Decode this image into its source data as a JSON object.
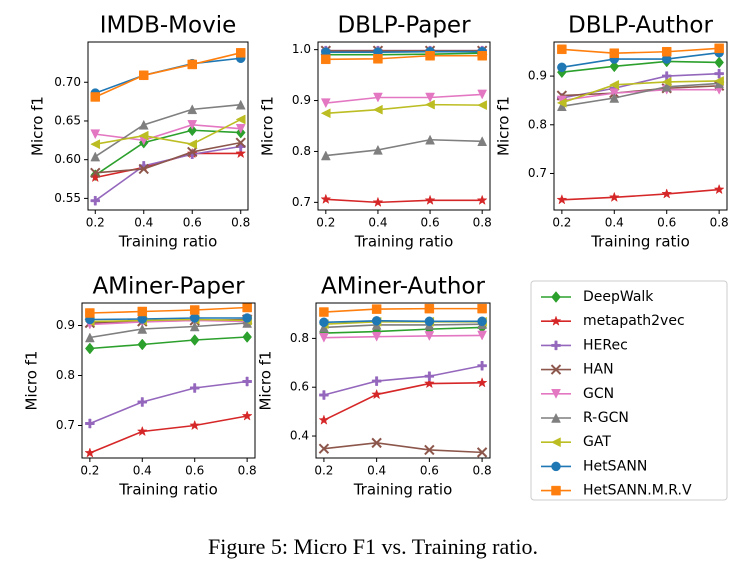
{
  "chart_data": [
    {
      "type": "line",
      "title": "IMDB-Movie",
      "x_label": "Training ratio",
      "y_label": "Micro f1",
      "x": [
        0.2,
        0.4,
        0.6,
        0.8
      ],
      "xlim": [
        0.17,
        0.83
      ],
      "xticks": [
        0.2,
        0.4,
        0.6,
        0.8
      ],
      "ylim": [
        0.535,
        0.752
      ],
      "yticks": [
        0.55,
        {
          "value": 0.6,
          "label": "0.60"
        },
        0.65,
        {
          "value": 0.7,
          "label": "0.70"
        }
      ],
      "series": [
        {
          "name": "DeepWalk",
          "color": "#2ca02c",
          "marker": "diamond",
          "values": [
            0.58,
            0.622,
            0.638,
            0.635
          ]
        },
        {
          "name": "metapath2vec",
          "color": "#d62728",
          "marker": "star",
          "values": [
            0.577,
            0.59,
            0.608,
            0.608
          ]
        },
        {
          "name": "HERec",
          "color": "#9467bd",
          "marker": "plus",
          "values": [
            0.547,
            0.592,
            0.607,
            0.617
          ]
        },
        {
          "name": "HAN",
          "color": "#8c564b",
          "marker": "x",
          "values": [
            0.583,
            0.588,
            0.61,
            0.622
          ]
        },
        {
          "name": "GCN",
          "color": "#e377c2",
          "marker": "tri-down",
          "values": [
            0.633,
            0.625,
            0.645,
            0.64
          ]
        },
        {
          "name": "R-GCN",
          "color": "#7f7f7f",
          "marker": "tri-up",
          "values": [
            0.604,
            0.645,
            0.665,
            0.671
          ]
        },
        {
          "name": "GAT",
          "color": "#bcbd22",
          "marker": "tri-left",
          "values": [
            0.62,
            0.631,
            0.62,
            0.652
          ]
        },
        {
          "name": "HetSANN",
          "color": "#1f77b4",
          "marker": "circle",
          "values": [
            0.686,
            0.709,
            0.724,
            0.731
          ]
        },
        {
          "name": "HetSANN.M.R.V",
          "color": "#ff7f0e",
          "marker": "square",
          "values": [
            0.681,
            0.709,
            0.723,
            0.738
          ]
        }
      ]
    },
    {
      "type": "line",
      "title": "DBLP-Paper",
      "x_label": "Training ratio",
      "y_label": "Micro f1",
      "x": [
        0.2,
        0.4,
        0.6,
        0.8
      ],
      "xlim": [
        0.17,
        0.83
      ],
      "xticks": [
        0.2,
        0.4,
        0.6,
        0.8
      ],
      "ylim": [
        0.685,
        1.015
      ],
      "yticks": [
        0.7,
        0.8,
        0.9,
        {
          "value": 1.0,
          "label": "1.0"
        }
      ],
      "series": [
        {
          "name": "DeepWalk",
          "color": "#2ca02c",
          "marker": "diamond",
          "values": [
            0.99,
            0.99,
            0.991,
            0.993
          ]
        },
        {
          "name": "metapath2vec",
          "color": "#d62728",
          "marker": "star",
          "values": [
            0.706,
            0.7,
            0.704,
            0.704
          ]
        },
        {
          "name": "HERec",
          "color": "#9467bd",
          "marker": "plus",
          "values": [
            0.998,
            0.998,
            0.998,
            0.998
          ]
        },
        {
          "name": "HAN",
          "color": "#8c564b",
          "marker": "x",
          "values": [
            0.998,
            0.998,
            0.998,
            0.998
          ]
        },
        {
          "name": "GCN",
          "color": "#e377c2",
          "marker": "tri-down",
          "values": [
            0.895,
            0.906,
            0.906,
            0.912
          ]
        },
        {
          "name": "R-GCN",
          "color": "#7f7f7f",
          "marker": "tri-up",
          "values": [
            0.792,
            0.803,
            0.823,
            0.82
          ]
        },
        {
          "name": "GAT",
          "color": "#bcbd22",
          "marker": "tri-left",
          "values": [
            0.875,
            0.882,
            0.892,
            0.891
          ]
        },
        {
          "name": "HetSANN",
          "color": "#1f77b4",
          "marker": "circle",
          "values": [
            0.995,
            0.995,
            0.996,
            0.996
          ]
        },
        {
          "name": "HetSANN.M.R.V",
          "color": "#ff7f0e",
          "marker": "square",
          "values": [
            0.981,
            0.982,
            0.988,
            0.988
          ]
        }
      ]
    },
    {
      "type": "line",
      "title": "DBLP-Author",
      "x_label": "Training ratio",
      "y_label": "Micro f1",
      "x": [
        0.2,
        0.4,
        0.6,
        0.8
      ],
      "xlim": [
        0.17,
        0.83
      ],
      "xticks": [
        0.2,
        0.4,
        0.6,
        0.8
      ],
      "ylim": [
        0.625,
        0.97
      ],
      "yticks": [
        0.7,
        0.8,
        0.9
      ],
      "series": [
        {
          "name": "DeepWalk",
          "color": "#2ca02c",
          "marker": "diamond",
          "values": [
            0.908,
            0.92,
            0.93,
            0.928
          ]
        },
        {
          "name": "metapath2vec",
          "color": "#d62728",
          "marker": "star",
          "values": [
            0.646,
            0.651,
            0.658,
            0.667
          ]
        },
        {
          "name": "HERec",
          "color": "#9467bd",
          "marker": "plus",
          "values": [
            0.855,
            0.875,
            0.9,
            0.905
          ]
        },
        {
          "name": "HAN",
          "color": "#8c564b",
          "marker": "x",
          "values": [
            0.86,
            0.865,
            0.875,
            0.88
          ]
        },
        {
          "name": "GCN",
          "color": "#e377c2",
          "marker": "tri-down",
          "values": [
            0.85,
            0.865,
            0.872,
            0.872
          ]
        },
        {
          "name": "R-GCN",
          "color": "#7f7f7f",
          "marker": "tri-up",
          "values": [
            0.838,
            0.855,
            0.878,
            0.885
          ]
        },
        {
          "name": "GAT",
          "color": "#bcbd22",
          "marker": "tri-left",
          "values": [
            0.845,
            0.882,
            0.888,
            0.89
          ]
        },
        {
          "name": "HetSANN",
          "color": "#1f77b4",
          "marker": "circle",
          "values": [
            0.918,
            0.935,
            0.935,
            0.948
          ]
        },
        {
          "name": "HetSANN.M.R.V",
          "color": "#ff7f0e",
          "marker": "square",
          "values": [
            0.955,
            0.947,
            0.95,
            0.957
          ]
        }
      ]
    },
    {
      "type": "line",
      "title": "AMiner-Paper",
      "x_label": "Training ratio",
      "y_label": "Micro f1",
      "x": [
        0.2,
        0.4,
        0.6,
        0.8
      ],
      "xlim": [
        0.17,
        0.83
      ],
      "xticks": [
        0.2,
        0.4,
        0.6,
        0.8
      ],
      "ylim": [
        0.635,
        0.945
      ],
      "yticks": [
        0.7,
        0.8,
        0.9
      ],
      "series": [
        {
          "name": "DeepWalk",
          "color": "#2ca02c",
          "marker": "diamond",
          "values": [
            0.854,
            0.862,
            0.871,
            0.877
          ]
        },
        {
          "name": "metapath2vec",
          "color": "#d62728",
          "marker": "star",
          "values": [
            0.645,
            0.688,
            0.7,
            0.719
          ]
        },
        {
          "name": "HERec",
          "color": "#9467bd",
          "marker": "plus",
          "values": [
            0.704,
            0.747,
            0.775,
            0.788
          ]
        },
        {
          "name": "HAN",
          "color": "#8c564b",
          "marker": "x",
          "values": [
            0.905,
            0.908,
            0.91,
            0.912
          ]
        },
        {
          "name": "GCN",
          "color": "#e377c2",
          "marker": "tri-down",
          "values": [
            0.902,
            0.907,
            0.91,
            0.908
          ]
        },
        {
          "name": "R-GCN",
          "color": "#7f7f7f",
          "marker": "tri-up",
          "values": [
            0.876,
            0.893,
            0.898,
            0.905
          ]
        },
        {
          "name": "GAT",
          "color": "#bcbd22",
          "marker": "tri-left",
          "values": [
            0.908,
            0.91,
            0.912,
            0.91
          ]
        },
        {
          "name": "HetSANN",
          "color": "#1f77b4",
          "marker": "circle",
          "values": [
            0.912,
            0.913,
            0.915,
            0.915
          ]
        },
        {
          "name": "HetSANN.M.R.V",
          "color": "#ff7f0e",
          "marker": "square",
          "values": [
            0.925,
            0.928,
            0.931,
            0.936
          ]
        }
      ]
    },
    {
      "type": "line",
      "title": "AMiner-Author",
      "x_label": "Training ratio",
      "y_label": "Micro f1",
      "x": [
        0.2,
        0.4,
        0.6,
        0.8
      ],
      "xlim": [
        0.17,
        0.83
      ],
      "xticks": [
        0.2,
        0.4,
        0.6,
        0.8
      ],
      "ylim": [
        0.31,
        0.945
      ],
      "yticks": [
        0.4,
        0.6,
        0.8
      ],
      "series": [
        {
          "name": "DeepWalk",
          "color": "#2ca02c",
          "marker": "diamond",
          "values": [
            0.822,
            0.828,
            0.838,
            0.845
          ]
        },
        {
          "name": "metapath2vec",
          "color": "#d62728",
          "marker": "star",
          "values": [
            0.465,
            0.57,
            0.615,
            0.618
          ]
        },
        {
          "name": "HERec",
          "color": "#9467bd",
          "marker": "plus",
          "values": [
            0.568,
            0.625,
            0.645,
            0.688
          ]
        },
        {
          "name": "HAN",
          "color": "#8c564b",
          "marker": "x",
          "values": [
            0.348,
            0.372,
            0.343,
            0.333
          ]
        },
        {
          "name": "GCN",
          "color": "#e377c2",
          "marker": "tri-down",
          "values": [
            0.803,
            0.807,
            0.81,
            0.812
          ]
        },
        {
          "name": "R-GCN",
          "color": "#7f7f7f",
          "marker": "tri-up",
          "values": [
            0.845,
            0.855,
            0.855,
            0.858
          ]
        },
        {
          "name": "GAT",
          "color": "#bcbd22",
          "marker": "tri-left",
          "values": [
            0.858,
            0.868,
            0.868,
            0.868
          ]
        },
        {
          "name": "HetSANN",
          "color": "#1f77b4",
          "marker": "circle",
          "values": [
            0.866,
            0.872,
            0.87,
            0.87
          ]
        },
        {
          "name": "HetSANN.M.R.V",
          "color": "#ff7f0e",
          "marker": "square",
          "values": [
            0.908,
            0.92,
            0.922,
            0.922
          ]
        }
      ]
    }
  ],
  "caption": "Figure 5: Micro F1 vs. Training ratio."
}
